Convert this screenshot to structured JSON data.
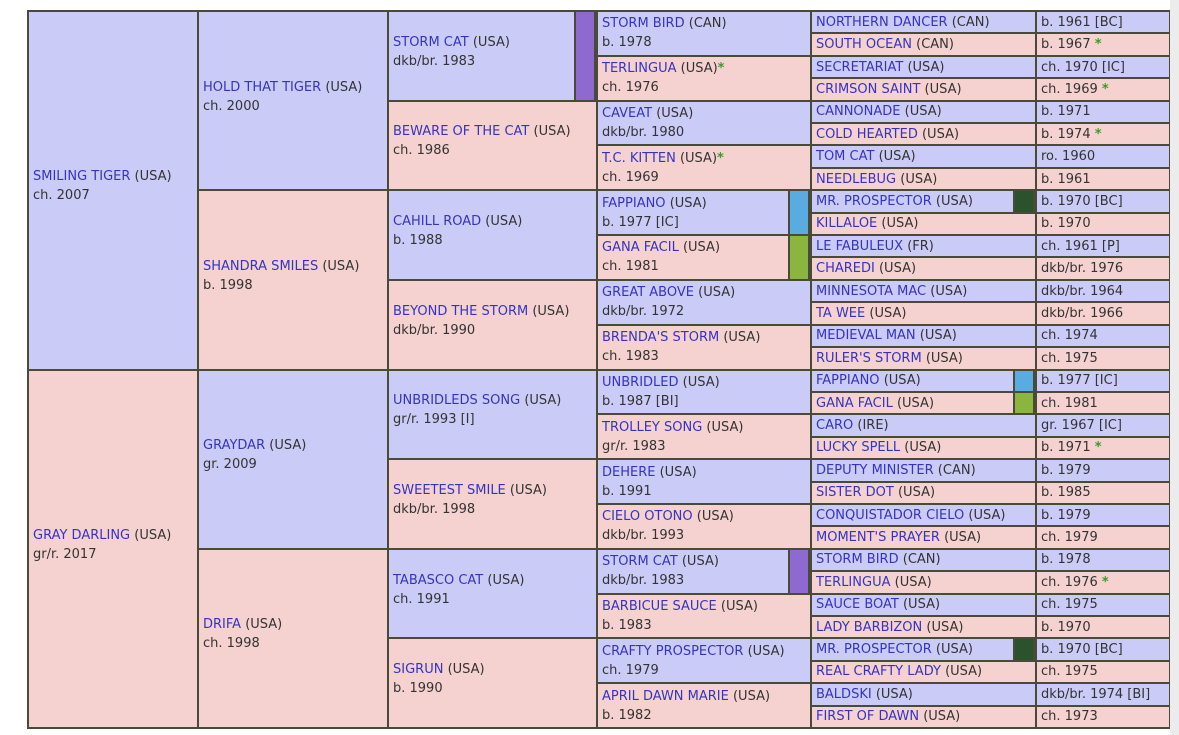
{
  "colors": {
    "male": "#cbcbf8",
    "female": "#f5d1cf",
    "name": "#3434c4",
    "star": "#3c9a2a"
  },
  "gen1": [
    {
      "name": "SMILING TIGER",
      "country": "(USA)",
      "details": "ch. 2007"
    },
    {
      "name": "GRAY DARLING",
      "country": "(USA)",
      "details": "gr/r. 2017"
    }
  ],
  "gen2": [
    {
      "name": "HOLD THAT TIGER",
      "country": "(USA)",
      "details": "ch. 2000"
    },
    {
      "name": "SHANDRA SMILES",
      "country": "(USA)",
      "details": "b. 1998"
    },
    {
      "name": "GRAYDAR",
      "country": "(USA)",
      "details": "gr. 2009"
    },
    {
      "name": "DRIFA",
      "country": "(USA)",
      "details": "ch. 1998"
    }
  ],
  "gen3": [
    {
      "name": "STORM CAT",
      "country": "(USA)",
      "details": "dkb/br. 1983",
      "marker": "#8e6ad0"
    },
    {
      "name": "BEWARE OF THE CAT",
      "country": "(USA)",
      "details": "ch. 1986"
    },
    {
      "name": "CAHILL ROAD",
      "country": "(USA)",
      "details": "b. 1988"
    },
    {
      "name": "BEYOND THE STORM",
      "country": "(USA)",
      "details": "dkb/br. 1990"
    },
    {
      "name": "UNBRIDLEDS SONG",
      "country": "(USA)",
      "details": "gr/r. 1993 [I]"
    },
    {
      "name": "SWEETEST SMILE",
      "country": "(USA)",
      "details": "dkb/br. 1998"
    },
    {
      "name": "TABASCO CAT",
      "country": "(USA)",
      "details": "ch. 1991"
    },
    {
      "name": "SIGRUN",
      "country": "(USA)",
      "details": "b. 1990"
    }
  ],
  "gen4": [
    {
      "name": "STORM BIRD",
      "country": "(CAN)",
      "details": "b. 1978"
    },
    {
      "name": "TERLINGUA",
      "country": "(USA)",
      "star": "*",
      "details": "ch. 1976"
    },
    {
      "name": "CAVEAT",
      "country": "(USA)",
      "details": "dkb/br. 1980"
    },
    {
      "name": "T.C. KITTEN",
      "country": "(USA)",
      "star": "*",
      "details": "ch. 1969"
    },
    {
      "name": "FAPPIANO",
      "country": "(USA)",
      "details": "b. 1977 [IC]",
      "marker": "#5aabe2"
    },
    {
      "name": "GANA FACIL",
      "country": "(USA)",
      "details": "ch. 1981",
      "marker": "#8ab640"
    },
    {
      "name": "GREAT ABOVE",
      "country": "(USA)",
      "details": "dkb/br. 1972"
    },
    {
      "name": "BRENDA'S STORM",
      "country": "(USA)",
      "details": "ch. 1983"
    },
    {
      "name": "UNBRIDLED",
      "country": "(USA)",
      "details": "b. 1987 [BI]"
    },
    {
      "name": "TROLLEY SONG",
      "country": "(USA)",
      "details": "gr/r. 1983"
    },
    {
      "name": "DEHERE",
      "country": "(USA)",
      "details": "b. 1991"
    },
    {
      "name": "CIELO OTONO",
      "country": "(USA)",
      "details": "dkb/br. 1993"
    },
    {
      "name": "STORM CAT",
      "country": "(USA)",
      "details": "dkb/br. 1983",
      "marker": "#8e6ad0"
    },
    {
      "name": "BARBICUE SAUCE",
      "country": "(USA)",
      "details": "b. 1983"
    },
    {
      "name": "CRAFTY PROSPECTOR",
      "country": "(USA)",
      "details": "ch. 1979"
    },
    {
      "name": "APRIL DAWN MARIE",
      "country": "(USA)",
      "details": "b. 1982"
    }
  ],
  "gen5": [
    {
      "name": "NORTHERN DANCER",
      "country": "(CAN)",
      "details": "b. 1961 [BC]"
    },
    {
      "name": "SOUTH OCEAN",
      "country": "(CAN)",
      "details": "b. 1967",
      "star": "*"
    },
    {
      "name": "SECRETARIAT",
      "country": "(USA)",
      "details": "ch. 1970 [IC]"
    },
    {
      "name": "CRIMSON SAINT",
      "country": "(USA)",
      "details": "ch. 1969",
      "star": "*"
    },
    {
      "name": "CANNONADE",
      "country": "(USA)",
      "details": "b. 1971"
    },
    {
      "name": "COLD HEARTED",
      "country": "(USA)",
      "details": "b. 1974",
      "star": "*"
    },
    {
      "name": "TOM CAT",
      "country": "(USA)",
      "details": "ro. 1960"
    },
    {
      "name": "NEEDLEBUG",
      "country": "(USA)",
      "details": "b. 1961"
    },
    {
      "name": "MR. PROSPECTOR",
      "country": "(USA)",
      "details": "b. 1970 [BC]",
      "marker": "#2c522c"
    },
    {
      "name": "KILLALOE",
      "country": "(USA)",
      "details": "b. 1970"
    },
    {
      "name": "LE FABULEUX",
      "country": "(FR)",
      "details": "ch. 1961 [P]"
    },
    {
      "name": "CHAREDI",
      "country": "(USA)",
      "details": "dkb/br. 1976"
    },
    {
      "name": "MINNESOTA MAC",
      "country": "(USA)",
      "details": "dkb/br. 1964"
    },
    {
      "name": "TA WEE",
      "country": "(USA)",
      "details": "dkb/br. 1966"
    },
    {
      "name": "MEDIEVAL MAN",
      "country": "(USA)",
      "details": "ch. 1974"
    },
    {
      "name": "RULER'S STORM",
      "country": "(USA)",
      "details": "ch. 1975"
    },
    {
      "name": "FAPPIANO",
      "country": "(USA)",
      "details": "b. 1977 [IC]",
      "marker": "#5aabe2"
    },
    {
      "name": "GANA FACIL",
      "country": "(USA)",
      "details": "ch. 1981",
      "marker": "#8ab640"
    },
    {
      "name": "CARO",
      "country": "(IRE)",
      "details": "gr. 1967 [IC]"
    },
    {
      "name": "LUCKY SPELL",
      "country": "(USA)",
      "details": "b. 1971",
      "star": "*"
    },
    {
      "name": "DEPUTY MINISTER",
      "country": "(CAN)",
      "details": "b. 1979"
    },
    {
      "name": "SISTER DOT",
      "country": "(USA)",
      "details": "b. 1985"
    },
    {
      "name": "CONQUISTADOR CIELO",
      "country": "(USA)",
      "details": "b. 1979"
    },
    {
      "name": "MOMENT'S PRAYER",
      "country": "(USA)",
      "details": "ch. 1979"
    },
    {
      "name": "STORM BIRD",
      "country": "(CAN)",
      "details": "b. 1978"
    },
    {
      "name": "TERLINGUA",
      "country": "(USA)",
      "details": "ch. 1976",
      "star": "*"
    },
    {
      "name": "SAUCE BOAT",
      "country": "(USA)",
      "details": "ch. 1975"
    },
    {
      "name": "LADY BARBIZON",
      "country": "(USA)",
      "details": "b. 1970"
    },
    {
      "name": "MR. PROSPECTOR",
      "country": "(USA)",
      "details": "b. 1970 [BC]",
      "marker": "#2c522c"
    },
    {
      "name": "REAL CRAFTY LADY",
      "country": "(USA)",
      "details": "ch. 1975"
    },
    {
      "name": "BALDSKI",
      "country": "(USA)",
      "details": "dkb/br. 1974 [BI]"
    },
    {
      "name": "FIRST OF DAWN",
      "country": "(USA)",
      "details": "ch. 1973"
    }
  ]
}
